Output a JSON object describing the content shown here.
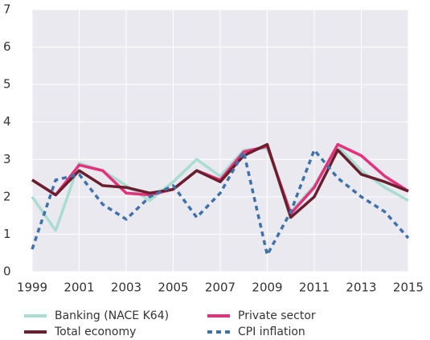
{
  "chart_data": {
    "type": "line",
    "x": [
      1999,
      2000,
      2001,
      2002,
      2003,
      2004,
      2005,
      2006,
      2007,
      2008,
      2009,
      2010,
      2011,
      2012,
      2013,
      2014,
      2015
    ],
    "xlim": [
      1999,
      2015
    ],
    "xticks": [
      1999,
      2001,
      2003,
      2005,
      2007,
      2009,
      2011,
      2013,
      2015
    ],
    "ylim": [
      0,
      7
    ],
    "yticks": [
      0,
      1,
      2,
      3,
      4,
      5,
      6,
      7
    ],
    "grid": true,
    "series": [
      {
        "name": "Banking (NACE K64)",
        "color": "#a9ddd1",
        "dash": false,
        "values": [
          2.0,
          1.1,
          2.9,
          2.7,
          2.3,
          1.9,
          2.4,
          3.0,
          2.55,
          3.25,
          3.3,
          1.6,
          2.3,
          3.35,
          2.7,
          2.25,
          1.9
        ]
      },
      {
        "name": "Private sector",
        "color": "#e5317b",
        "dash": false,
        "values": [
          2.45,
          2.05,
          2.85,
          2.7,
          2.1,
          2.05,
          2.2,
          2.7,
          2.45,
          3.2,
          3.35,
          1.55,
          2.25,
          3.4,
          3.1,
          2.55,
          2.15
        ]
      },
      {
        "name": "Total economy",
        "color": "#6b1f2e",
        "dash": false,
        "values": [
          2.45,
          2.05,
          2.7,
          2.3,
          2.25,
          2.1,
          2.2,
          2.7,
          2.4,
          3.1,
          3.4,
          1.45,
          2.0,
          3.25,
          2.6,
          2.4,
          2.15
        ]
      },
      {
        "name": "CPI inflation",
        "color": "#3f72aa",
        "dash": true,
        "values": [
          0.6,
          2.45,
          2.6,
          1.8,
          1.4,
          2.0,
          2.3,
          1.45,
          2.1,
          3.2,
          0.45,
          1.6,
          3.25,
          2.5,
          2.0,
          1.6,
          0.9
        ]
      }
    ]
  }
}
